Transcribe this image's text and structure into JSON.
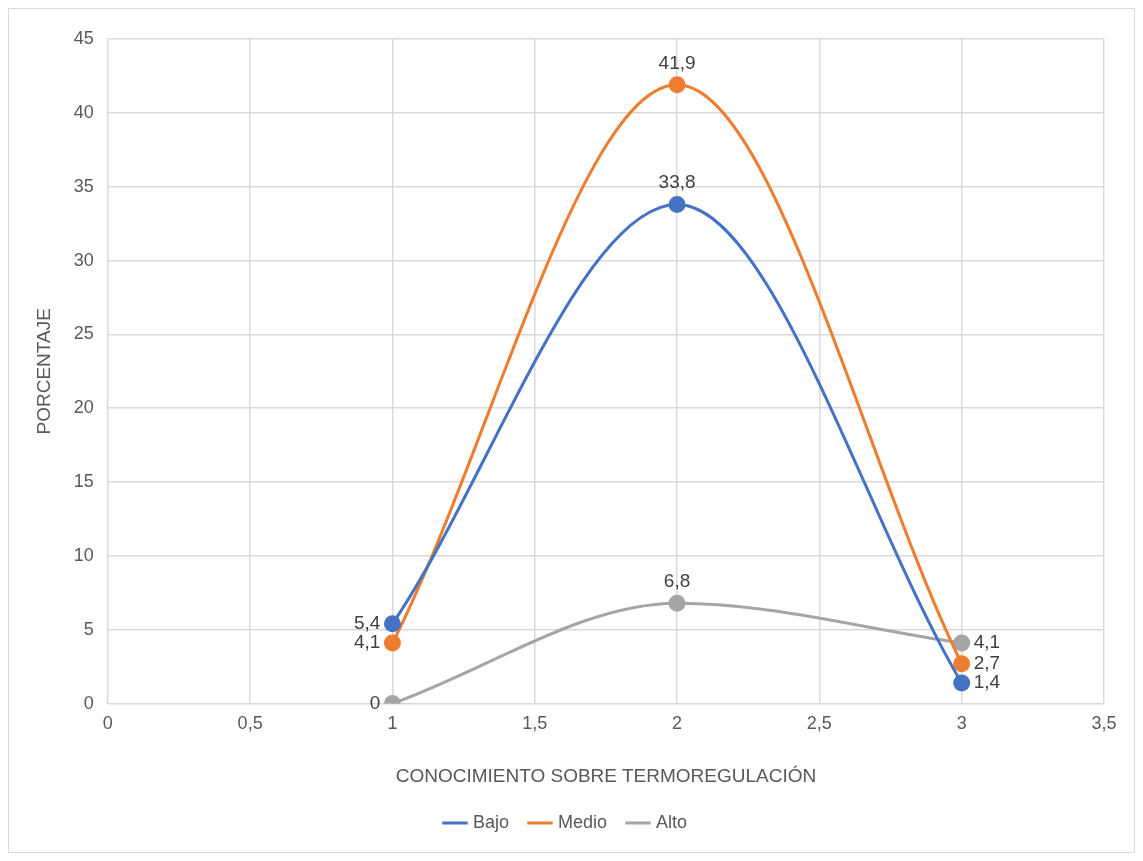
{
  "chart_data": {
    "type": "line",
    "xlabel": "CONOCIMIENTO SOBRE TERMOREGULACIÓN",
    "ylabel": "PORCENTAJE",
    "x": [
      1,
      2,
      3
    ],
    "series": [
      {
        "name": "Bajo",
        "color": "#4472c4",
        "values": [
          5.4,
          33.8,
          1.4
        ],
        "value_labels": [
          "5,4",
          "33,8",
          "1,4"
        ]
      },
      {
        "name": "Medio",
        "color": "#ed7d31",
        "values": [
          4.1,
          41.9,
          2.7
        ],
        "value_labels": [
          "4,1",
          "41,9",
          "2,7"
        ]
      },
      {
        "name": "Alto",
        "color": "#a5a5a5",
        "values": [
          0,
          6.8,
          4.1
        ],
        "value_labels": [
          "0",
          "6,8",
          "4,1"
        ]
      }
    ],
    "xlim": [
      0,
      3.5
    ],
    "xticks": [
      0,
      {
        "value": 0.5,
        "label": "0,5"
      },
      1,
      {
        "value": 1.5,
        "label": "1,5"
      },
      2,
      {
        "value": 2.5,
        "label": "2,5"
      },
      3,
      {
        "value": 3.5,
        "label": "3,5"
      }
    ],
    "ylim": [
      0,
      45
    ],
    "yticks": [
      0,
      5,
      10,
      15,
      20,
      25,
      30,
      35,
      40,
      45
    ],
    "grid": true,
    "legend": "bottom",
    "marker": "circle",
    "line_style": "solid"
  }
}
